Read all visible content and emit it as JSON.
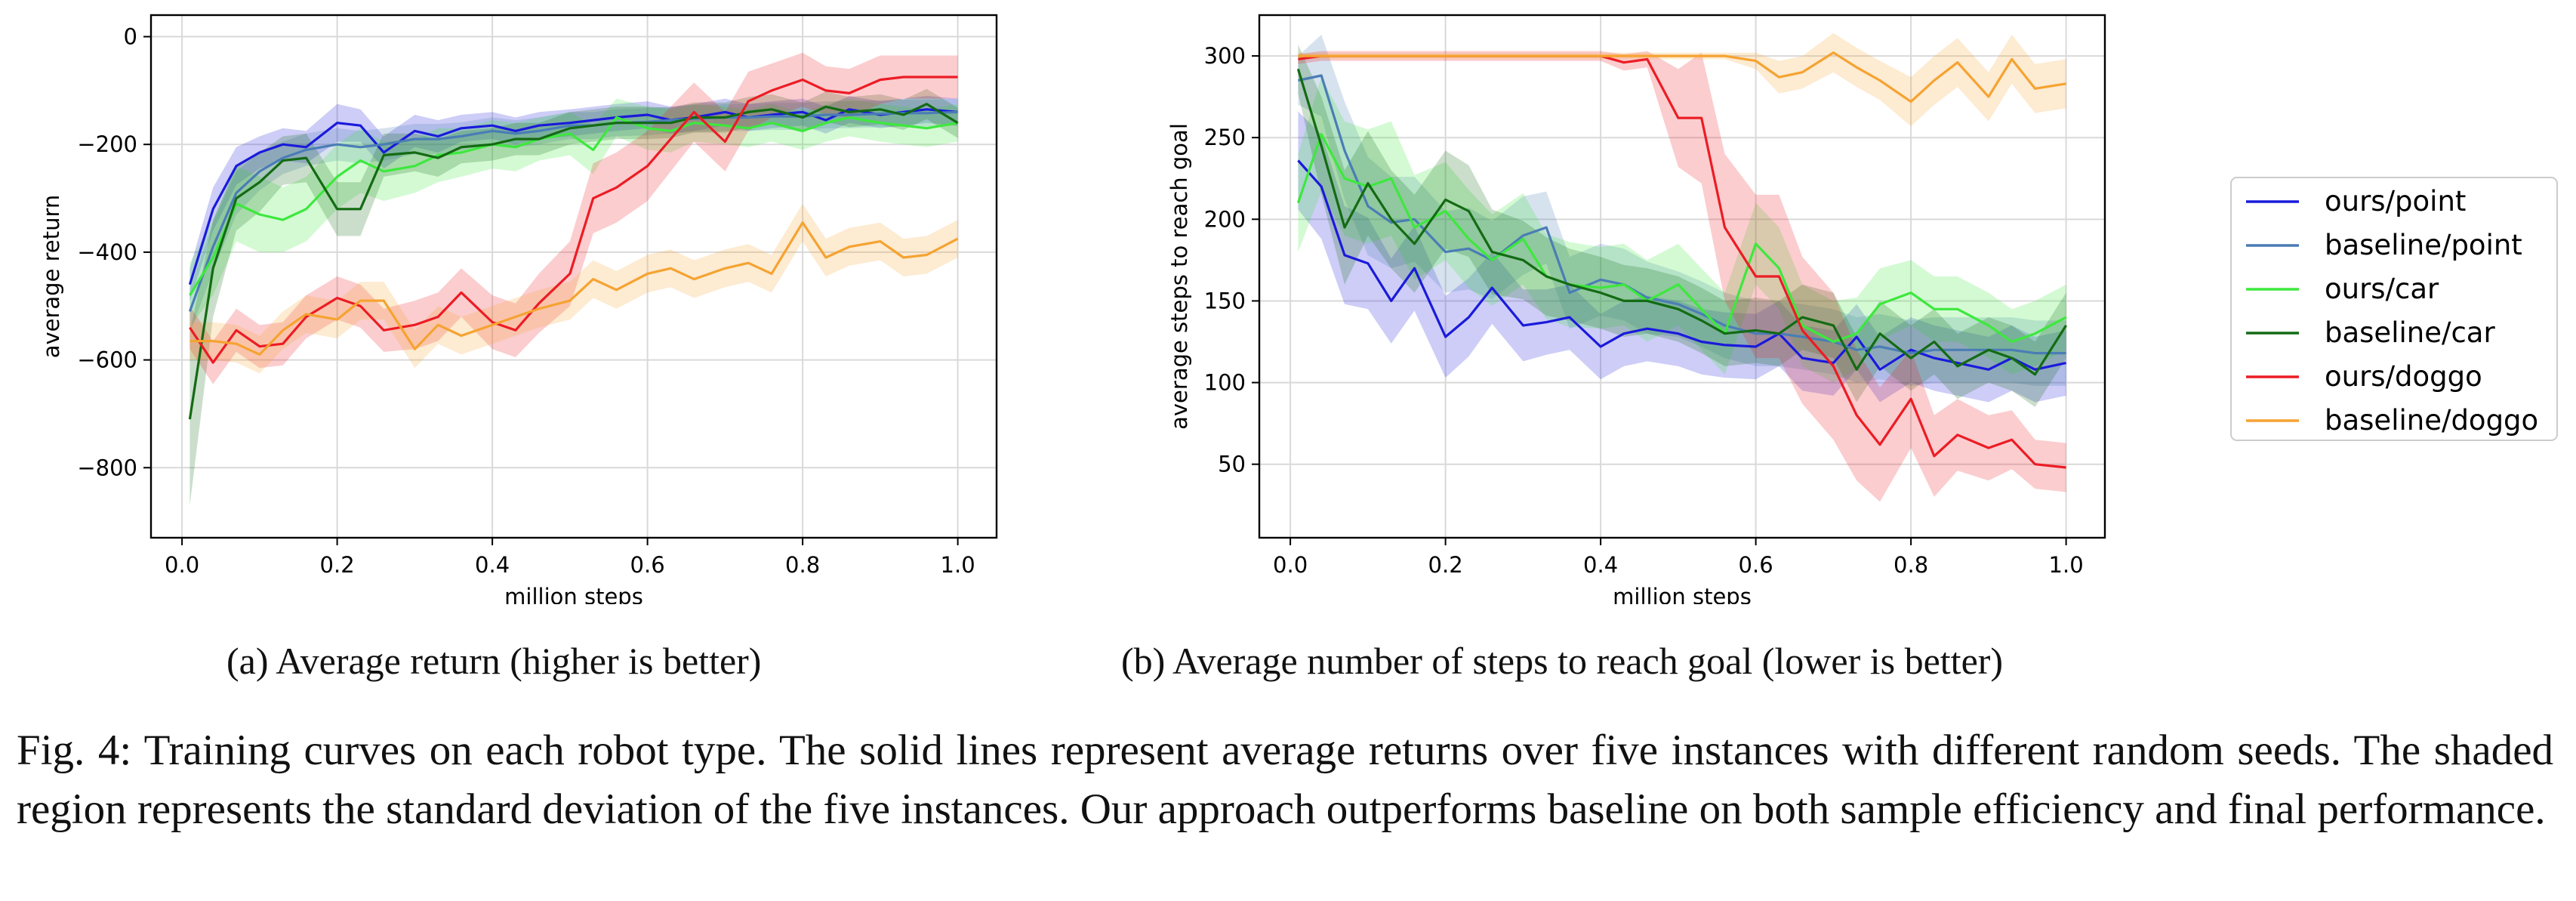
{
  "chart_data": [
    {
      "type": "line",
      "id": "a",
      "title": "",
      "xlabel": "million steps",
      "ylabel": "average return",
      "xlim": [
        -0.04,
        1.05
      ],
      "ylim": [
        -930,
        40
      ],
      "xticks": [
        0.0,
        0.2,
        0.4,
        0.6,
        0.8,
        1.0
      ],
      "xtick_labels": [
        "0.0",
        "0.2",
        "0.4",
        "0.6",
        "0.8",
        "1.0"
      ],
      "yticks": [
        0,
        -200,
        -400,
        -600,
        -800
      ],
      "ytick_labels": [
        "0",
        "−200",
        "−400",
        "−600",
        "−800"
      ],
      "grid": true,
      "x": [
        0.01,
        0.04,
        0.07,
        0.1,
        0.13,
        0.16,
        0.2,
        0.23,
        0.26,
        0.3,
        0.33,
        0.36,
        0.4,
        0.43,
        0.46,
        0.5,
        0.53,
        0.56,
        0.6,
        0.63,
        0.66,
        0.7,
        0.73,
        0.76,
        0.8,
        0.83,
        0.86,
        0.9,
        0.93,
        0.96,
        1.0
      ],
      "series": [
        {
          "name": "ours/point",
          "color": "#1a1adb",
          "values": [
            -460,
            -320,
            -240,
            -215,
            -200,
            -205,
            -160,
            -165,
            -215,
            -175,
            -185,
            -170,
            -165,
            -175,
            -165,
            -160,
            -155,
            -150,
            -145,
            -155,
            -150,
            -140,
            -150,
            -145,
            -140,
            -155,
            -135,
            -145,
            -140,
            -135,
            -140
          ],
          "std": [
            30,
            40,
            35,
            30,
            30,
            30,
            35,
            30,
            30,
            30,
            30,
            25,
            25,
            25,
            25,
            25,
            25,
            25,
            25,
            25,
            25,
            25,
            25,
            25,
            25,
            25,
            25,
            25,
            25,
            25,
            25
          ]
        },
        {
          "name": "baseline/point",
          "color": "#4a7db5",
          "values": [
            -510,
            -390,
            -290,
            -250,
            -225,
            -210,
            -200,
            -205,
            -200,
            -190,
            -190,
            -185,
            -175,
            -180,
            -175,
            -165,
            -165,
            -160,
            -158,
            -155,
            -152,
            -150,
            -150,
            -148,
            -148,
            -145,
            -145,
            -143,
            -142,
            -142,
            -140
          ],
          "std": [
            40,
            45,
            40,
            35,
            30,
            30,
            30,
            30,
            30,
            28,
            28,
            26,
            25,
            25,
            25,
            25,
            25,
            25,
            25,
            25,
            25,
            25,
            25,
            25,
            25,
            25,
            25,
            25,
            25,
            25,
            25
          ]
        },
        {
          "name": "ours/car",
          "color": "#3de83d",
          "values": [
            -480,
            -410,
            -310,
            -330,
            -340,
            -320,
            -260,
            -230,
            -250,
            -240,
            -220,
            -215,
            -200,
            -205,
            -190,
            -180,
            -210,
            -150,
            -170,
            -175,
            -160,
            -165,
            -170,
            -160,
            -175,
            -160,
            -150,
            -160,
            -165,
            -170,
            -160
          ],
          "std": [
            60,
            70,
            70,
            70,
            60,
            60,
            60,
            60,
            55,
            50,
            50,
            45,
            45,
            45,
            40,
            40,
            45,
            35,
            40,
            40,
            35,
            35,
            35,
            35,
            35,
            35,
            35,
            35,
            35,
            35,
            35
          ]
        },
        {
          "name": "baseline/car",
          "color": "#136b13",
          "values": [
            -710,
            -430,
            -300,
            -270,
            -230,
            -225,
            -320,
            -320,
            -220,
            -215,
            -225,
            -205,
            -200,
            -190,
            -190,
            -170,
            -165,
            -160,
            -160,
            -160,
            -150,
            -150,
            -140,
            -135,
            -150,
            -130,
            -140,
            -135,
            -145,
            -125,
            -160
          ],
          "std": [
            160,
            90,
            60,
            55,
            45,
            45,
            50,
            50,
            40,
            35,
            35,
            30,
            30,
            30,
            30,
            30,
            30,
            30,
            30,
            28,
            28,
            28,
            28,
            28,
            28,
            28,
            28,
            28,
            28,
            28,
            28
          ]
        },
        {
          "name": "ours/doggo",
          "color": "#ec1c24",
          "values": [
            -540,
            -605,
            -545,
            -575,
            -570,
            -520,
            -485,
            -500,
            -545,
            -535,
            -520,
            -475,
            -530,
            -545,
            -495,
            -440,
            -300,
            -280,
            -240,
            -190,
            -140,
            -195,
            -120,
            -100,
            -80,
            -100,
            -105,
            -80,
            -75,
            -75,
            -75
          ],
          "std": [
            40,
            40,
            40,
            40,
            40,
            40,
            40,
            40,
            40,
            45,
            45,
            45,
            50,
            50,
            55,
            60,
            65,
            65,
            65,
            60,
            55,
            55,
            55,
            50,
            50,
            45,
            45,
            45,
            40,
            40,
            40
          ]
        },
        {
          "name": "baseline/doggo",
          "color": "#f5a331",
          "values": [
            -565,
            -565,
            -570,
            -590,
            -545,
            -515,
            -525,
            -490,
            -490,
            -580,
            -535,
            -555,
            -535,
            -520,
            -505,
            -490,
            -450,
            -470,
            -440,
            -430,
            -450,
            -430,
            -420,
            -440,
            -345,
            -410,
            -390,
            -380,
            -410,
            -405,
            -375
          ],
          "std": [
            35,
            35,
            35,
            35,
            35,
            35,
            35,
            35,
            35,
            35,
            35,
            35,
            35,
            35,
            35,
            35,
            35,
            35,
            35,
            35,
            35,
            35,
            35,
            35,
            35,
            35,
            35,
            35,
            35,
            35,
            35
          ]
        }
      ]
    },
    {
      "type": "line",
      "id": "b",
      "title": "",
      "xlabel": "million steps",
      "ylabel": "average steps to reach goal",
      "xlim": [
        -0.04,
        1.05
      ],
      "ylim": [
        5,
        325
      ],
      "xticks": [
        0.0,
        0.2,
        0.4,
        0.6,
        0.8,
        1.0
      ],
      "xtick_labels": [
        "0.0",
        "0.2",
        "0.4",
        "0.6",
        "0.8",
        "1.0"
      ],
      "yticks": [
        50,
        100,
        150,
        200,
        250,
        300
      ],
      "ytick_labels": [
        "50",
        "100",
        "150",
        "200",
        "250",
        "300"
      ],
      "grid": true,
      "x": [
        0.01,
        0.04,
        0.07,
        0.1,
        0.13,
        0.16,
        0.2,
        0.23,
        0.26,
        0.3,
        0.33,
        0.36,
        0.4,
        0.43,
        0.46,
        0.5,
        0.53,
        0.56,
        0.6,
        0.63,
        0.66,
        0.7,
        0.73,
        0.76,
        0.8,
        0.83,
        0.86,
        0.9,
        0.93,
        0.96,
        1.0
      ],
      "series": [
        {
          "name": "ours/point",
          "color": "#1a1adb",
          "values": [
            236,
            220,
            178,
            173,
            150,
            170,
            128,
            140,
            158,
            135,
            137,
            140,
            122,
            130,
            133,
            130,
            125,
            123,
            122,
            130,
            115,
            112,
            128,
            108,
            120,
            115,
            112,
            108,
            115,
            108,
            112
          ],
          "std": [
            30,
            32,
            30,
            28,
            26,
            26,
            25,
            24,
            22,
            22,
            20,
            20,
            20,
            20,
            20,
            20,
            20,
            20,
            20,
            20,
            20,
            20,
            20,
            20,
            20,
            20,
            20,
            20,
            20,
            20,
            20
          ]
        },
        {
          "name": "baseline/point",
          "color": "#4a7db5",
          "values": [
            285,
            288,
            242,
            208,
            198,
            200,
            180,
            182,
            175,
            190,
            195,
            155,
            163,
            160,
            152,
            148,
            142,
            135,
            130,
            130,
            128,
            125,
            120,
            122,
            118,
            120,
            120,
            120,
            120,
            118,
            118
          ],
          "std": [
            15,
            25,
            30,
            30,
            28,
            26,
            25,
            25,
            24,
            24,
            22,
            22,
            22,
            22,
            22,
            20,
            20,
            20,
            20,
            20,
            20,
            20,
            20,
            20,
            20,
            20,
            20,
            20,
            20,
            20,
            20
          ]
        },
        {
          "name": "ours/car",
          "color": "#3de83d",
          "values": [
            210,
            252,
            225,
            220,
            225,
            195,
            205,
            188,
            175,
            188,
            165,
            160,
            158,
            160,
            150,
            160,
            145,
            130,
            185,
            170,
            135,
            125,
            130,
            148,
            155,
            145,
            145,
            135,
            125,
            130,
            140
          ],
          "std": [
            30,
            35,
            35,
            35,
            35,
            32,
            30,
            30,
            28,
            28,
            26,
            26,
            25,
            25,
            25,
            25,
            25,
            25,
            25,
            25,
            25,
            25,
            22,
            22,
            20,
            20,
            20,
            20,
            20,
            20,
            20
          ]
        },
        {
          "name": "baseline/car",
          "color": "#136b13",
          "values": [
            292,
            245,
            195,
            222,
            200,
            185,
            212,
            205,
            180,
            175,
            165,
            160,
            155,
            150,
            150,
            145,
            138,
            130,
            132,
            130,
            140,
            135,
            108,
            130,
            115,
            125,
            110,
            120,
            115,
            105,
            135
          ],
          "std": [
            15,
            30,
            35,
            32,
            30,
            30,
            30,
            28,
            26,
            24,
            24,
            22,
            22,
            22,
            20,
            20,
            20,
            20,
            20,
            20,
            20,
            20,
            20,
            20,
            20,
            20,
            20,
            20,
            20,
            20,
            20
          ]
        },
        {
          "name": "ours/doggo",
          "color": "#ec1c24",
          "values": [
            298,
            300,
            300,
            300,
            300,
            300,
            300,
            300,
            300,
            300,
            300,
            300,
            300,
            296,
            298,
            262,
            262,
            195,
            165,
            165,
            132,
            110,
            80,
            62,
            90,
            55,
            68,
            60,
            65,
            50,
            48
          ],
          "std": [
            3,
            3,
            3,
            3,
            3,
            3,
            3,
            3,
            3,
            3,
            3,
            3,
            3,
            5,
            5,
            30,
            40,
            45,
            50,
            50,
            45,
            45,
            40,
            35,
            30,
            25,
            22,
            20,
            18,
            15,
            15
          ]
        },
        {
          "name": "baseline/doggo",
          "color": "#f5a331",
          "values": [
            300,
            300,
            300,
            300,
            300,
            300,
            300,
            300,
            300,
            300,
            300,
            300,
            300,
            300,
            300,
            300,
            300,
            300,
            297,
            287,
            290,
            302,
            293,
            285,
            272,
            285,
            296,
            275,
            298,
            280,
            283
          ],
          "std": [
            2,
            2,
            2,
            2,
            2,
            2,
            2,
            2,
            2,
            2,
            2,
            2,
            2,
            2,
            2,
            2,
            2,
            2,
            5,
            10,
            10,
            12,
            12,
            12,
            15,
            15,
            15,
            15,
            15,
            15,
            15
          ]
        }
      ]
    }
  ],
  "legend": {
    "placement": "right",
    "entries": [
      {
        "name": "ours/point",
        "color": "#1a1adb"
      },
      {
        "name": "baseline/point",
        "color": "#4a7db5"
      },
      {
        "name": "ours/car",
        "color": "#3de83d"
      },
      {
        "name": "baseline/car",
        "color": "#136b13"
      },
      {
        "name": "ours/doggo",
        "color": "#ec1c24"
      },
      {
        "name": "baseline/doggo",
        "color": "#f5a331"
      }
    ]
  },
  "captions": {
    "a": "(a) Average return (higher is better)",
    "b": "(b) Average number of steps to reach goal (lower is better)",
    "main": "Fig. 4: Training curves on each robot type. The solid lines represent average returns over five instances with different random seeds. The shaded region represents the standard deviation of the five instances. Our approach outperforms baseline on both sample efficiency and final performance."
  }
}
